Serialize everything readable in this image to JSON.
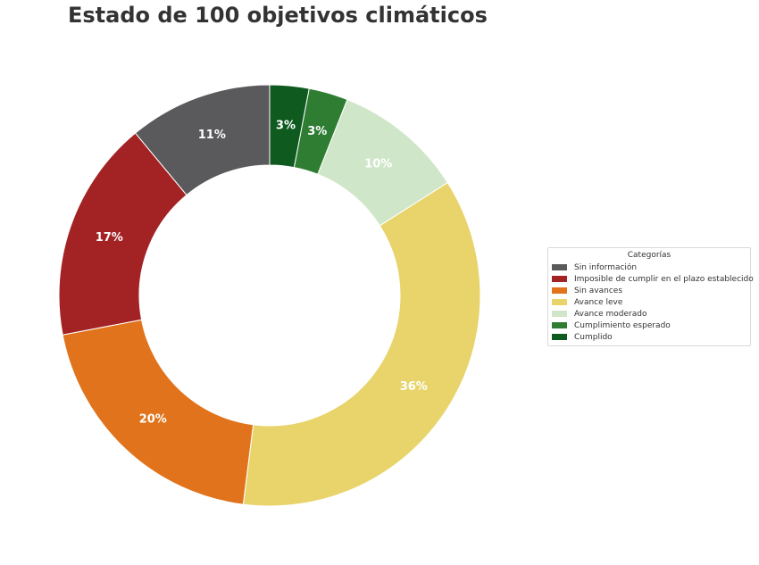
{
  "chart_data": {
    "type": "pie",
    "variant": "donut",
    "title": "Estado de 100 objetivos climáticos",
    "legend_title": "Categorías",
    "legend_position": "right",
    "categories": [
      "Sin información",
      "Imposible de cumplir en el plazo establecido",
      "Sin avances",
      "Avance leve",
      "Avance moderado",
      "Cumplimiento esperado",
      "Cumplido"
    ],
    "values": [
      11,
      17,
      20,
      36,
      10,
      3,
      3
    ],
    "labels": [
      "11%",
      "17%",
      "20%",
      "36%",
      "10%",
      "3%",
      "3%"
    ],
    "colors": [
      "#5a5a5c",
      "#a32224",
      "#e0731b",
      "#e8d46b",
      "#d0e6c9",
      "#2e7d32",
      "#0e5a1f"
    ]
  }
}
